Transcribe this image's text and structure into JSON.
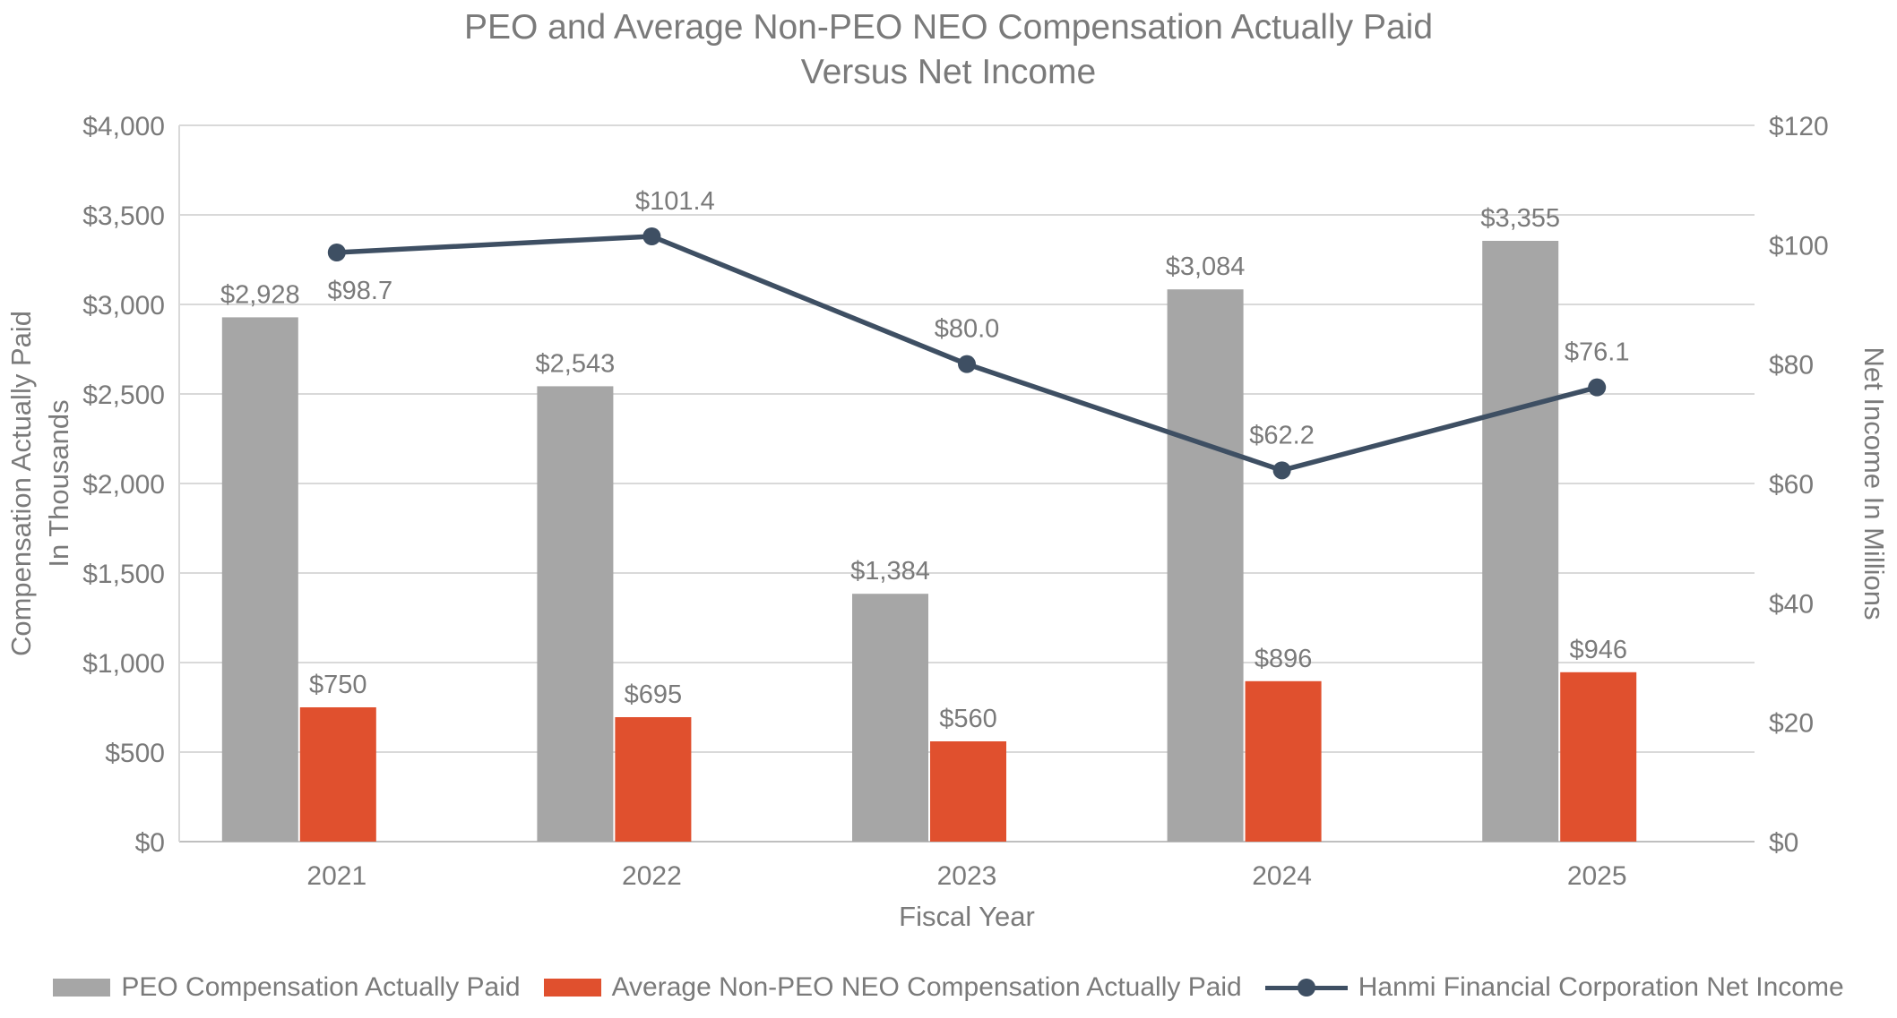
{
  "chart_data": {
    "type": "combo",
    "title": "PEO and Average Non-PEO NEO Compensation Actually Paid Versus Net Income",
    "title_lines": [
      "PEO and Average Non-PEO NEO Compensation Actually Paid",
      "Versus Net Income"
    ],
    "xlabel": "Fiscal Year",
    "categories": [
      "2021",
      "2022",
      "2023",
      "2024",
      "2025"
    ],
    "series": [
      {
        "name": "PEO Compensation Actually Paid",
        "type": "bar",
        "axis": "left",
        "color": "#A6A6A6",
        "values": [
          2928,
          2543,
          1384,
          3084,
          3355
        ],
        "labels": [
          "$2,928",
          "$2,543",
          "$1,384",
          "$3,084",
          "$3,355"
        ]
      },
      {
        "name": "Average Non-PEO NEO Compensation Actually Paid",
        "type": "bar",
        "axis": "left",
        "color": "#E0502E",
        "values": [
          750,
          695,
          560,
          896,
          946
        ],
        "labels": [
          "$750",
          "$695",
          "$560",
          "$896",
          "$946"
        ]
      },
      {
        "name": "Hanmi Financial Corporation Net Income",
        "type": "line",
        "axis": "right",
        "color": "#3E4F63",
        "values": [
          98.7,
          101.4,
          80.0,
          62.2,
          76.1
        ],
        "labels": [
          "$98.7",
          "$101.4",
          "$80.0",
          "$62.2",
          "$76.1"
        ]
      }
    ],
    "left_axis": {
      "label_lines": [
        "Compensation Actually Paid",
        "In Thousands"
      ],
      "min": 0,
      "max": 4000,
      "step": 500,
      "ticks": [
        "$0",
        "$500",
        "$1,000",
        "$1,500",
        "$2,000",
        "$2,500",
        "$3,000",
        "$3,500",
        "$4,000"
      ]
    },
    "right_axis": {
      "label": "Net Income In Millions",
      "min": 0,
      "max": 120,
      "step": 20,
      "ticks": [
        "$0",
        "$20",
        "$40",
        "$60",
        "$80",
        "$100",
        "$120"
      ]
    },
    "grid": true,
    "legend_position": "bottom",
    "colors": {
      "text": "#7A7A7A",
      "gridline": "#D9D9D9",
      "axisline": "#BFBFBF"
    }
  }
}
